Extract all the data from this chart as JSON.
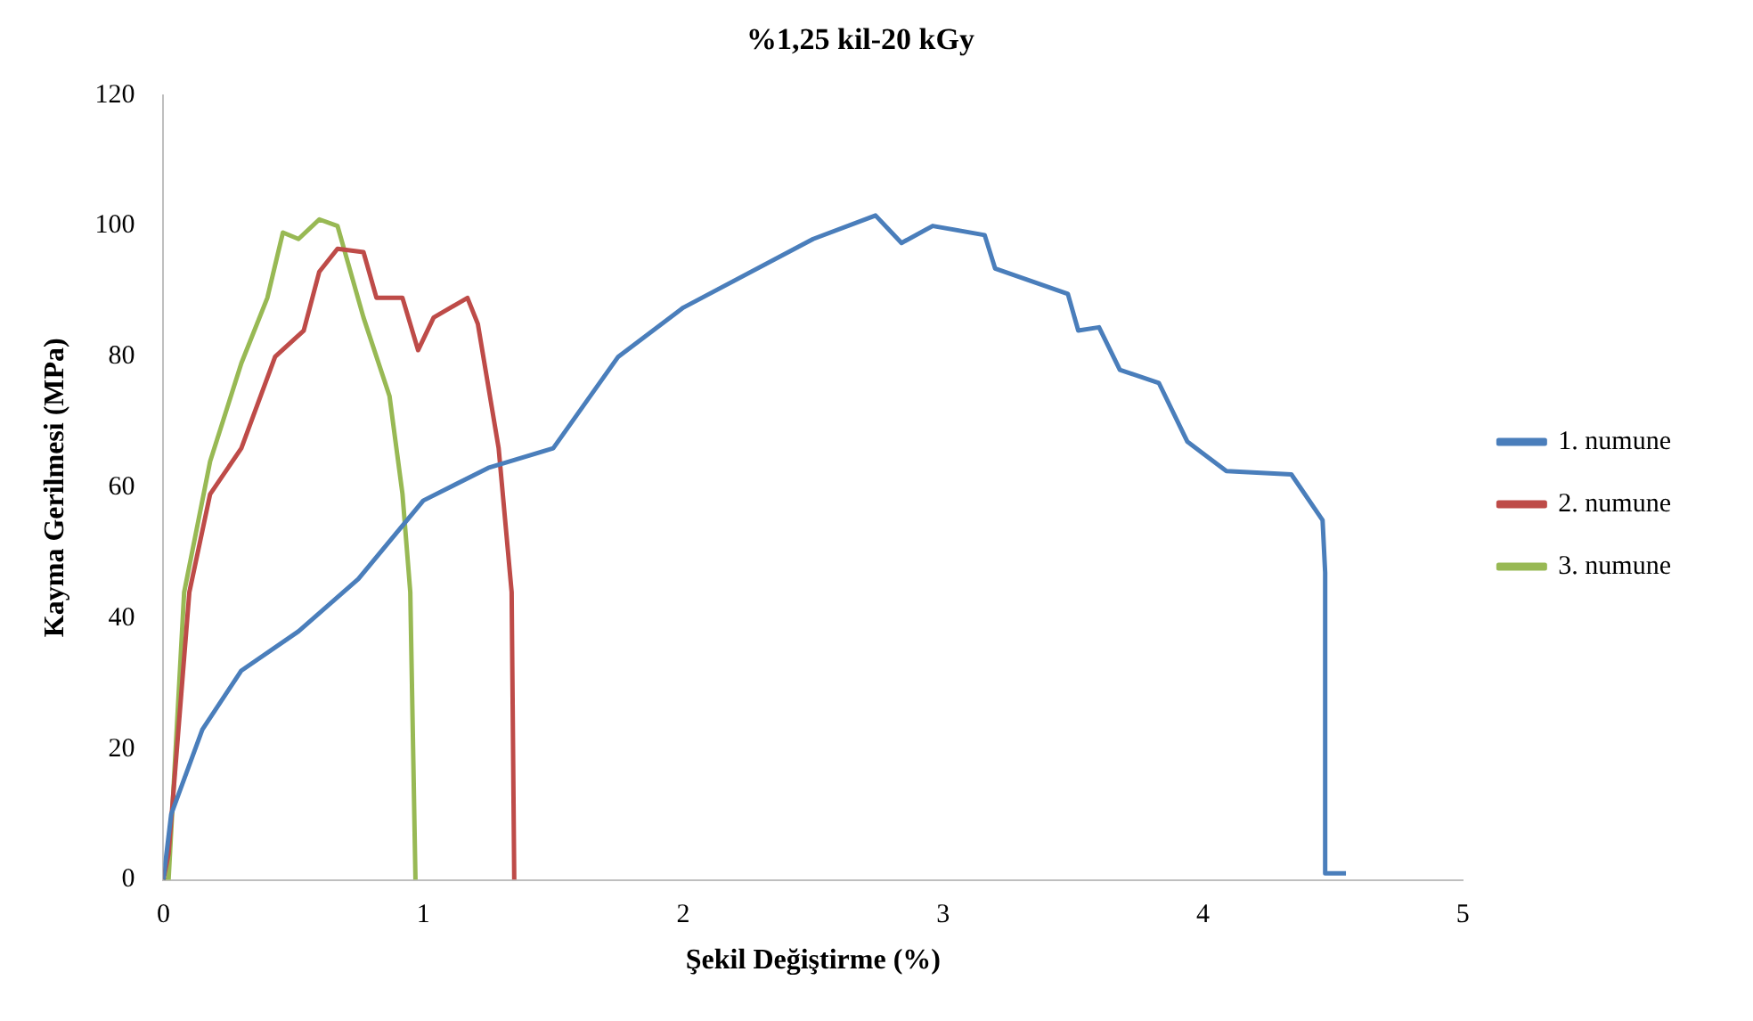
{
  "chart_data": {
    "type": "line",
    "title": "%1,25 kil-20 kGy",
    "xlabel": "Şekil Değiştirme (%)",
    "ylabel": "Kayma Gerilmesi (MPa)",
    "xlim": [
      0,
      5
    ],
    "xticks": [
      0,
      1,
      2,
      3,
      4,
      5
    ],
    "ylim": [
      0,
      120
    ],
    "yticks": [
      0,
      20,
      40,
      60,
      80,
      100,
      120
    ],
    "grid": false,
    "legend": "right",
    "marker": "none",
    "line_style": "solid",
    "series": [
      {
        "name": "1. numune",
        "color": "#4a7ebb",
        "x": [
          0,
          0.03,
          0.15,
          0.3,
          0.52,
          0.75,
          1,
          1.25,
          1.5,
          1.75,
          2,
          2.5,
          2.74,
          2.84,
          2.96,
          3.16,
          3.2,
          3.48,
          3.52,
          3.6,
          3.68,
          3.83,
          3.94,
          4.09,
          4.34,
          4.46,
          4.47,
          4.47,
          4.55
        ],
        "values": [
          0,
          10,
          23,
          32,
          38,
          46,
          58,
          63,
          66,
          80,
          87.5,
          98,
          101.6,
          97.4,
          100,
          98.6,
          93.5,
          89.6,
          84,
          84.5,
          78,
          76,
          67,
          62.5,
          62,
          55,
          47,
          1,
          1
        ]
      },
      {
        "name": "2. numune",
        "color": "#be4b48",
        "x": [
          0,
          0.02,
          0.1,
          0.18,
          0.3,
          0.43,
          0.54,
          0.6,
          0.67,
          0.77,
          0.82,
          0.92,
          0.98,
          1.04,
          1.17,
          1.21,
          1.29,
          1.34,
          1.35
        ],
        "values": [
          0,
          4,
          44,
          59,
          66,
          80,
          84,
          93,
          96.5,
          96,
          89,
          89,
          81,
          86,
          89,
          85,
          66,
          44,
          0
        ]
      },
      {
        "name": "3. numune",
        "color": "#98b954",
        "x": [
          0,
          0.02,
          0.08,
          0.18,
          0.3,
          0.4,
          0.46,
          0.52,
          0.6,
          0.67,
          0.77,
          0.87,
          0.92,
          0.95,
          0.97
        ],
        "values": [
          0,
          0,
          44,
          64,
          79,
          89,
          99,
          98,
          101,
          100,
          86,
          74,
          59,
          44,
          0
        ]
      }
    ]
  }
}
